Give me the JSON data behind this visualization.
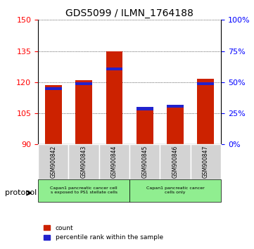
{
  "title": "GDS5099 / ILMN_1764188",
  "samples": [
    "GSM900842",
    "GSM900843",
    "GSM900844",
    "GSM900845",
    "GSM900846",
    "GSM900847"
  ],
  "count_values": [
    118.5,
    120.8,
    134.8,
    108.0,
    108.5,
    121.5
  ],
  "percentile_values": [
    46,
    50,
    62,
    30,
    32,
    50
  ],
  "ymin": 90,
  "ymax": 150,
  "yticks": [
    90,
    105,
    120,
    135,
    150
  ],
  "right_yticks": [
    0,
    25,
    50,
    75,
    100
  ],
  "bar_color": "#CC2200",
  "blue_color": "#2222CC",
  "protocol_groups": [
    {
      "label": "Capan1 pancreatic cancer cell\ns exposed to PS1 stellate cells",
      "samples": [
        0,
        1,
        2
      ],
      "color": "#90EE90"
    },
    {
      "label": "Capan1 pancreatic cancer\ncells only",
      "samples": [
        3,
        4,
        5
      ],
      "color": "#90EE90"
    }
  ],
  "protocol_text": "protocol",
  "bg_color": "#FFFFFF",
  "tick_area_color": "#D3D3D3",
  "protocol_box_color": "#90EE90",
  "legend_count_label": "count",
  "legend_pct_label": "percentile rank within the sample"
}
